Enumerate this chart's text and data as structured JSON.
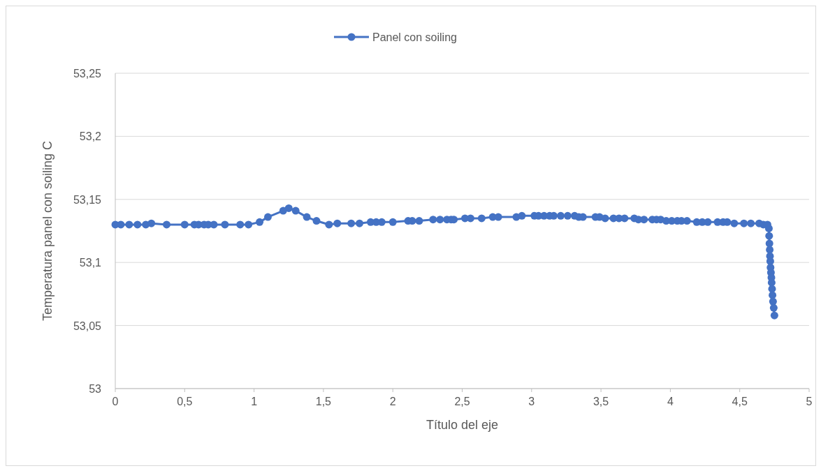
{
  "chart_data": {
    "type": "line",
    "xlabel": "Título del eje",
    "ylabel": "Temperatura panel con soiling C",
    "xlim": [
      0,
      5
    ],
    "xticks": [
      0,
      {
        "value": 0.5,
        "label": "0,5"
      },
      1,
      {
        "value": 1.5,
        "label": "1,5"
      },
      2,
      {
        "value": 2.5,
        "label": "2,5"
      },
      3,
      {
        "value": 3.5,
        "label": "3,5"
      },
      4,
      {
        "value": 4.5,
        "label": "4,5"
      },
      5
    ],
    "ylim": [
      53,
      53.25
    ],
    "yticks": [
      53,
      {
        "value": 53.05,
        "label": "53,05"
      },
      {
        "value": 53.1,
        "label": "53,1"
      },
      {
        "value": 53.15,
        "label": "53,15"
      },
      {
        "value": 53.2,
        "label": "53,2"
      },
      {
        "value": 53.25,
        "label": "53,25"
      }
    ],
    "grid": "y",
    "legend": "top",
    "marker": "circle",
    "line_style": "solid",
    "series": [
      {
        "name": "Panel con soiling",
        "color": "#4472c4",
        "x": [
          0,
          0.04,
          0.1,
          0.16,
          0.22,
          0.26,
          0.37,
          0.5,
          0.57,
          0.6,
          0.64,
          0.67,
          0.71,
          0.79,
          0.9,
          0.96,
          1.04,
          1.1,
          1.21,
          1.25,
          1.3,
          1.38,
          1.45,
          1.54,
          1.6,
          1.7,
          1.76,
          1.84,
          1.88,
          1.92,
          2.0,
          2.11,
          2.14,
          2.19,
          2.29,
          2.34,
          2.39,
          2.42,
          2.44,
          2.52,
          2.56,
          2.64,
          2.72,
          2.76,
          2.89,
          2.93,
          3.02,
          3.05,
          3.09,
          3.13,
          3.16,
          3.21,
          3.26,
          3.31,
          3.34,
          3.37,
          3.46,
          3.49,
          3.53,
          3.59,
          3.63,
          3.67,
          3.74,
          3.77,
          3.81,
          3.87,
          3.9,
          3.93,
          3.97,
          4.01,
          4.05,
          4.08,
          4.12,
          4.19,
          4.23,
          4.27,
          4.34,
          4.38,
          4.41,
          4.46,
          4.53,
          4.58,
          4.64,
          4.67,
          4.7,
          4.71,
          4.712,
          4.714,
          4.716,
          4.718,
          4.72,
          4.722,
          4.725,
          4.728,
          4.73,
          4.733,
          4.736,
          4.74,
          4.745,
          4.75
        ],
        "values": [
          53.13,
          53.13,
          53.13,
          53.13,
          53.13,
          53.131,
          53.13,
          53.13,
          53.13,
          53.13,
          53.13,
          53.13,
          53.13,
          53.13,
          53.13,
          53.13,
          53.132,
          53.136,
          53.141,
          53.143,
          53.141,
          53.136,
          53.133,
          53.13,
          53.131,
          53.131,
          53.131,
          53.132,
          53.132,
          53.132,
          53.132,
          53.133,
          53.133,
          53.133,
          53.134,
          53.134,
          53.134,
          53.134,
          53.134,
          53.135,
          53.135,
          53.135,
          53.136,
          53.136,
          53.136,
          53.137,
          53.137,
          53.137,
          53.137,
          53.137,
          53.137,
          53.137,
          53.137,
          53.137,
          53.136,
          53.136,
          53.136,
          53.136,
          53.135,
          53.135,
          53.135,
          53.135,
          53.135,
          53.134,
          53.134,
          53.134,
          53.134,
          53.134,
          53.133,
          53.133,
          53.133,
          53.133,
          53.133,
          53.132,
          53.132,
          53.132,
          53.132,
          53.132,
          53.132,
          53.131,
          53.131,
          53.131,
          53.131,
          53.13,
          53.13,
          53.127,
          53.121,
          53.115,
          53.11,
          53.105,
          53.101,
          53.096,
          53.092,
          53.088,
          53.084,
          53.079,
          53.074,
          53.069,
          53.064,
          53.058
        ]
      }
    ]
  }
}
